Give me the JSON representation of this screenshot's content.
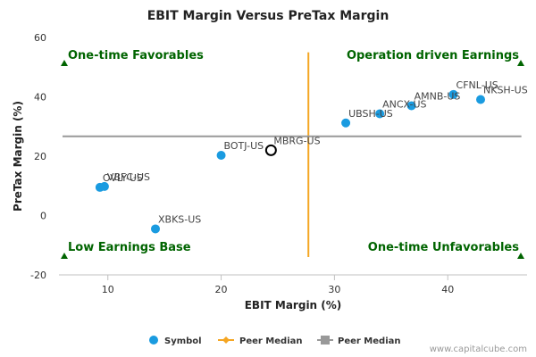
{
  "chart_data": {
    "type": "scatter",
    "title": "EBIT Margin Versus PreTax Margin",
    "xlabel": "EBIT Margin (%)",
    "ylabel": "PreTax Margin (%)",
    "xlim": [
      6,
      47
    ],
    "ylim": [
      -20,
      60
    ],
    "xticks": [
      10,
      20,
      30,
      40
    ],
    "yticks": [
      -20,
      0,
      20,
      40,
      60
    ],
    "points": [
      {
        "label": "OVLY-US",
        "x": 9.3,
        "y": 9.5,
        "highlight": false
      },
      {
        "label": "VBFC-US",
        "x": 9.7,
        "y": 9.8,
        "highlight": false
      },
      {
        "label": "XBKS-US",
        "x": 14.2,
        "y": -4.5,
        "highlight": false
      },
      {
        "label": "BOTJ-US",
        "x": 20.0,
        "y": 20.3,
        "highlight": false
      },
      {
        "label": "MBRG-US",
        "x": 24.4,
        "y": 22.0,
        "highlight": true
      },
      {
        "label": "UBSH-US",
        "x": 31.0,
        "y": 31.2,
        "highlight": false
      },
      {
        "label": "ANCX-US",
        "x": 34.0,
        "y": 34.3,
        "highlight": false
      },
      {
        "label": "AMNB-US",
        "x": 36.8,
        "y": 37.0,
        "highlight": false
      },
      {
        "label": "CFNL-US",
        "x": 40.5,
        "y": 40.8,
        "highlight": false
      },
      {
        "label": "NKSH-US",
        "x": 42.9,
        "y": 39.1,
        "highlight": false
      }
    ],
    "peer_median_x": 27.7,
    "peer_median_y": 26.7,
    "quadrants": {
      "top_left": "One-time Favorables",
      "top_right": "Operation driven Earnings",
      "bottom_left": "Low Earnings Base",
      "bottom_right": "One-time Unfavorables"
    },
    "legend": [
      {
        "name": "Symbol",
        "color": "#1a9be0"
      },
      {
        "name": "Peer Median",
        "color": "#f5a623"
      },
      {
        "name": "Peer Median",
        "color": "#999999"
      }
    ],
    "legend_position": "bottom",
    "grid": false
  },
  "credit": "www.capitalcube.com",
  "colors": {
    "point": "#1a9be0",
    "highlight_stroke": "#000000",
    "median_x_line": "#f5a623",
    "median_y_line": "#999999",
    "quadrant_text": "#006400"
  }
}
